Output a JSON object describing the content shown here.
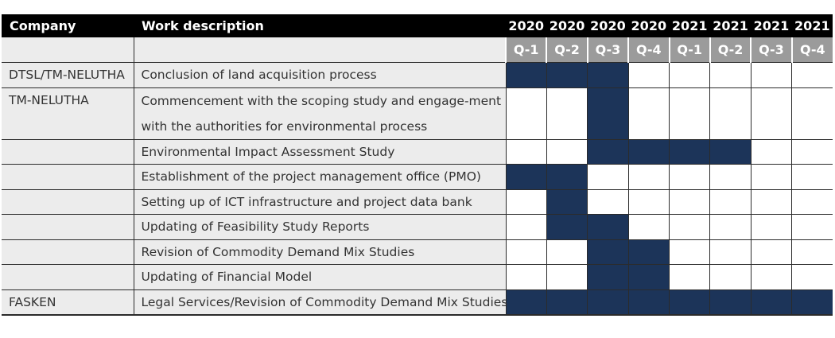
{
  "headers": {
    "company": "Company",
    "work": "Work description",
    "years": [
      "2020",
      "2020",
      "2020",
      "2020",
      "2021",
      "2021",
      "2021",
      "2021"
    ],
    "quarters": [
      "Q-1",
      "Q-2",
      "Q-3",
      "Q-4",
      "Q-1",
      "Q-2",
      "Q-3",
      "Q-4"
    ]
  },
  "colors": {
    "header_bg": "#000000",
    "quarter_bg": "#9b9b9b",
    "row_bg": "#ececec",
    "active_bar": "#1c3459",
    "empty_cell": "#ffffff"
  },
  "rows": [
    {
      "company": "DTSL/TM-NELUTHA",
      "work": "Conclusion of land acquisition process",
      "active": [
        1,
        1,
        1,
        0,
        0,
        0,
        0,
        0
      ]
    },
    {
      "company": "TM-NELUTHA",
      "work": "Commencement with the scoping study and engage-ment with the authorities for environmental process",
      "active": [
        0,
        0,
        1,
        0,
        0,
        0,
        0,
        0
      ]
    },
    {
      "company": "",
      "work": "Environmental Impact Assessment Study",
      "active": [
        0,
        0,
        1,
        1,
        1,
        1,
        0,
        0
      ]
    },
    {
      "company": "",
      "work": "Establishment of the project management office (PMO)",
      "active": [
        1,
        1,
        0,
        0,
        0,
        0,
        0,
        0
      ]
    },
    {
      "company": "",
      "work": "Setting up of ICT infrastructure and project data bank",
      "active": [
        0,
        1,
        0,
        0,
        0,
        0,
        0,
        0
      ]
    },
    {
      "company": "",
      "work": "Updating of Feasibility Study Reports",
      "active": [
        0,
        1,
        1,
        0,
        0,
        0,
        0,
        0
      ]
    },
    {
      "company": "",
      "work": "Revision of Commodity Demand Mix Studies",
      "active": [
        0,
        0,
        1,
        1,
        0,
        0,
        0,
        0
      ]
    },
    {
      "company": "",
      "work": "Updating of Financial Model",
      "active": [
        0,
        0,
        1,
        1,
        0,
        0,
        0,
        0
      ]
    },
    {
      "company": "FASKEN",
      "work": "Legal Services/Revision of Commodity Demand Mix Studies",
      "active": [
        1,
        1,
        1,
        1,
        1,
        1,
        1,
        1
      ]
    }
  ]
}
